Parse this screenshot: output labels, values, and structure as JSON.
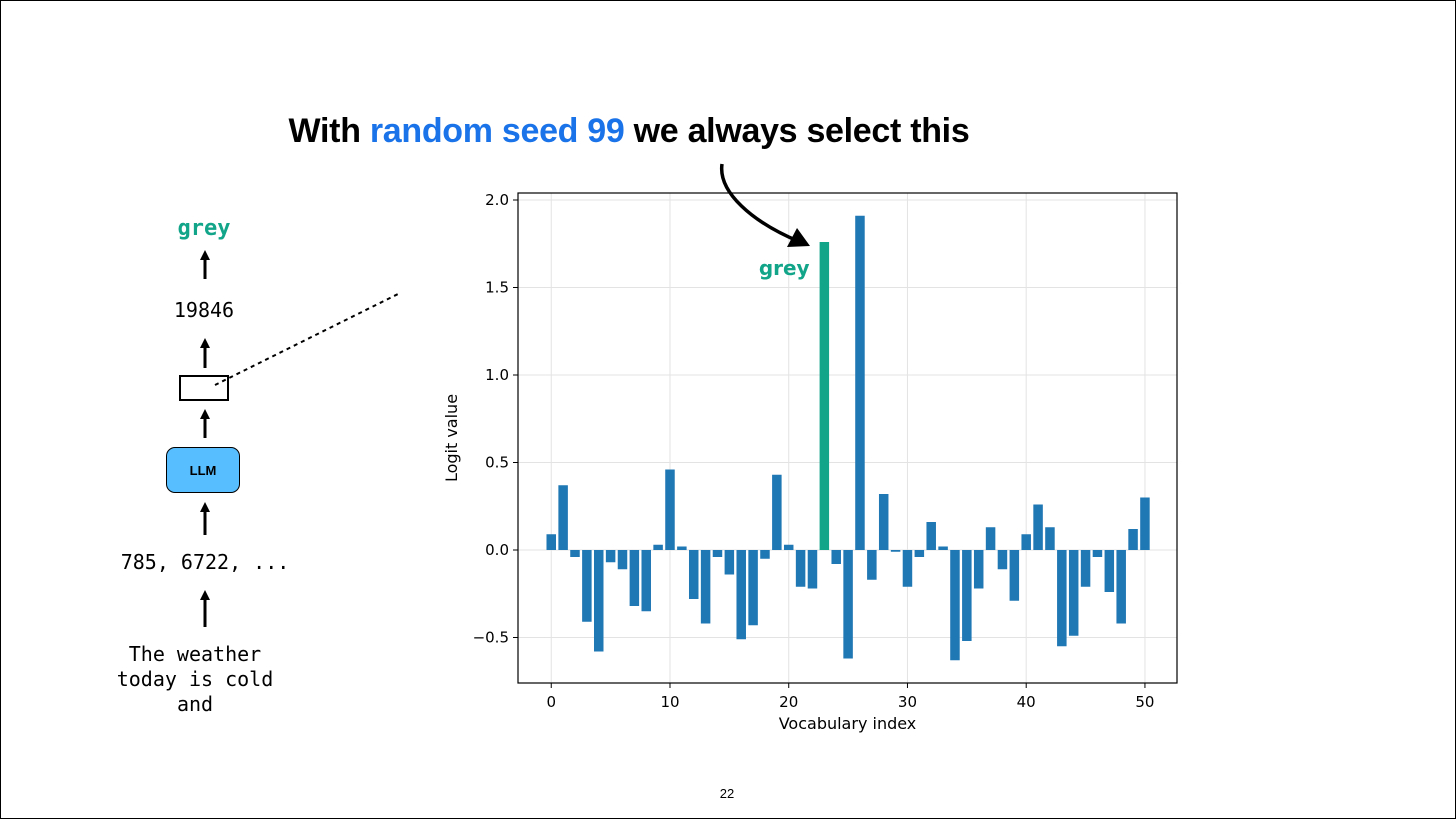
{
  "slide": {
    "title_parts": [
      "With ",
      "random seed 99",
      " we always select this"
    ],
    "page_number": "22",
    "colors": {
      "highlight_text": "#1a73e8",
      "selected_bar": "#12a58a",
      "bar": "#1f77b4",
      "llm_box": "#57beff",
      "word": "#12a58a"
    }
  },
  "pipeline": {
    "output_word": "grey",
    "token_id": "19846",
    "model_label": "LLM",
    "input_tokens": "785, 6722, ...",
    "input_text": "The weather\ntoday is cold\nand"
  },
  "chart_data": {
    "type": "bar",
    "xlabel": "Vocabulary index",
    "ylabel": "Logit value",
    "xlim": [
      -2.8,
      52.7
    ],
    "ylim": [
      -0.76,
      2.04
    ],
    "xticks": [
      0,
      10,
      20,
      30,
      40,
      50
    ],
    "yticks": [
      -0.5,
      0.0,
      0.5,
      1.0,
      1.5,
      2.0
    ],
    "ytick_labels": [
      "−0.5",
      "0.0",
      "0.5",
      "1.0",
      "1.5",
      "2.0"
    ],
    "grid": true,
    "annotation": {
      "text": "grey",
      "index": 23
    },
    "selected_index": 23,
    "values": [
      0.09,
      0.37,
      -0.04,
      -0.41,
      -0.58,
      -0.07,
      -0.11,
      -0.32,
      -0.35,
      0.03,
      0.46,
      0.02,
      -0.28,
      -0.42,
      -0.04,
      -0.14,
      -0.51,
      -0.43,
      -0.05,
      0.43,
      0.03,
      -0.21,
      -0.22,
      1.76,
      -0.08,
      -0.62,
      1.91,
      -0.17,
      0.32,
      -0.01,
      -0.21,
      -0.04,
      0.16,
      0.02,
      -0.63,
      -0.52,
      -0.22,
      0.13,
      -0.11,
      -0.29,
      0.09,
      0.26,
      0.13,
      -0.55,
      -0.49,
      -0.21,
      -0.04,
      -0.24,
      -0.42,
      0.12,
      0.3
    ]
  }
}
